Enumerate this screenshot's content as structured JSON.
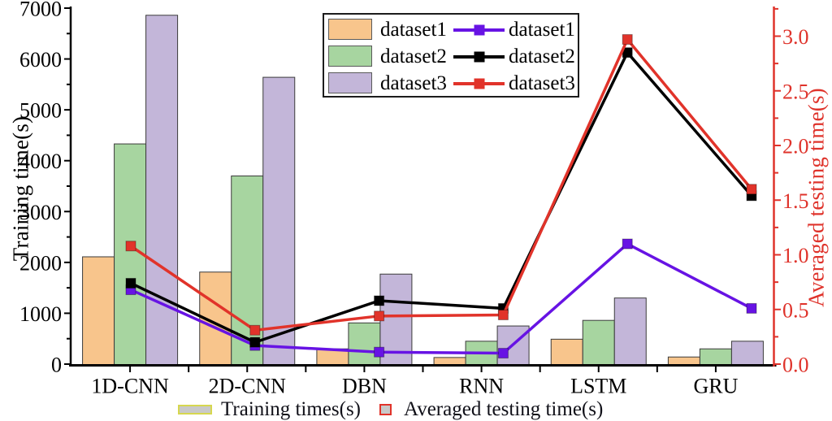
{
  "chart_data": {
    "type": "combo-bar-line",
    "title": "",
    "categories": [
      "1D-CNN",
      "2D-CNN",
      "DBN",
      "RNN",
      "LSTM",
      "GRU"
    ],
    "bar_series": [
      {
        "name": "dataset1",
        "color": "#F8C58C",
        "edge_color": "#3b3b3b",
        "axis": "left",
        "values": [
          2110,
          1810,
          300,
          130,
          490,
          140
        ]
      },
      {
        "name": "dataset2",
        "color": "#A7D5A0",
        "edge_color": "#3b3b3b",
        "axis": "left",
        "values": [
          4330,
          3700,
          810,
          450,
          860,
          300
        ]
      },
      {
        "name": "dataset3",
        "color": "#C3B6D9",
        "edge_color": "#3b3b3b",
        "axis": "left",
        "values": [
          6860,
          5640,
          1770,
          750,
          1300,
          450
        ]
      }
    ],
    "line_series": [
      {
        "name": "dataset1",
        "color": "#6713E4",
        "marker": "square",
        "axis": "right",
        "values": [
          0.68,
          0.17,
          0.11,
          0.1,
          1.1,
          0.51
        ]
      },
      {
        "name": "dataset2",
        "color": "#000000",
        "marker": "square",
        "axis": "right",
        "values": [
          0.74,
          0.2,
          0.58,
          0.51,
          2.85,
          1.54
        ]
      },
      {
        "name": "dataset3",
        "color": "#E1332A",
        "marker": "square",
        "axis": "right",
        "values": [
          1.08,
          0.31,
          0.44,
          0.45,
          2.97,
          1.6
        ]
      }
    ],
    "left_axis": {
      "title": "Training time(s)",
      "color": "#000000",
      "min": 0,
      "max": 7000,
      "major_tick_step": 1000,
      "minor_tick_step": 500,
      "tick_labels": [
        "0",
        "1000",
        "2000",
        "3000",
        "4000",
        "5000",
        "6000",
        "7000"
      ]
    },
    "right_axis": {
      "title": "Averaged testing time(s)",
      "color": "#DF332B",
      "min": 0,
      "max": 3.25,
      "major_tick_step": 0.5,
      "minor_tick_step": 0.25,
      "tick_labels": [
        "0.0",
        "0.5",
        "1.0",
        "1.5",
        "2.0",
        "2.5",
        "3.0"
      ]
    },
    "grid": "off",
    "legend": {
      "position": "top-center",
      "bar_entries": [
        "dataset1",
        "dataset2",
        "dataset3"
      ],
      "line_entries": [
        "dataset1",
        "dataset2",
        "dataset3"
      ]
    },
    "bottom_legend": [
      {
        "label": "Training times(s)",
        "swatch_fill": "#C9C9C9",
        "swatch_border": "#D6D74F"
      },
      {
        "label": "Averaged testing time(s)",
        "swatch_fill": "#C9C9C9",
        "swatch_border": "#E1332A"
      }
    ]
  }
}
